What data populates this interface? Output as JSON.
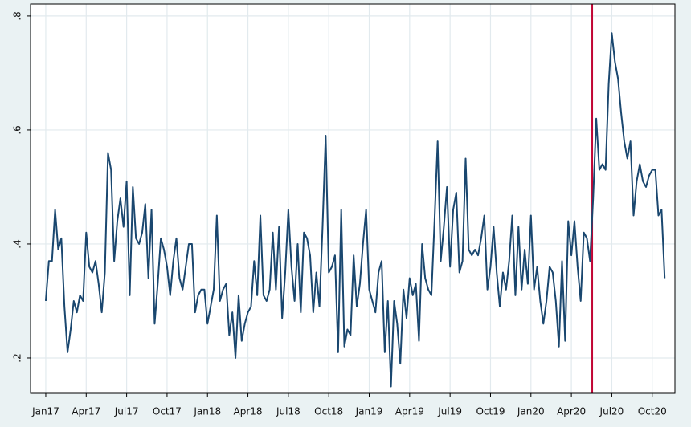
{
  "chart_data": {
    "type": "line",
    "x": [
      0,
      1,
      2,
      3,
      4,
      5,
      6,
      7,
      8,
      9,
      10,
      11,
      12,
      13,
      14,
      15,
      16,
      17,
      18,
      19,
      20,
      21,
      22,
      23,
      24,
      25,
      26,
      27,
      28,
      29,
      30,
      31,
      32,
      33,
      34,
      35,
      36,
      37,
      38,
      39,
      40,
      41,
      42,
      43,
      44,
      45,
      46,
      47,
      48,
      49,
      50,
      51,
      52,
      53,
      54,
      55,
      56,
      57,
      58,
      59,
      60,
      61,
      62,
      63,
      64,
      65,
      66,
      67,
      68,
      69,
      70,
      71,
      72,
      73,
      74,
      75,
      76,
      77,
      78,
      79,
      80,
      81,
      82,
      83,
      84,
      85,
      86,
      87,
      88,
      89,
      90,
      91,
      92,
      93,
      94,
      95,
      96,
      97,
      98,
      99,
      100,
      101,
      102,
      103,
      104,
      105,
      106,
      107,
      108,
      109,
      110,
      111,
      112,
      113,
      114,
      115,
      116,
      117,
      118,
      119,
      120,
      121,
      122,
      123,
      124,
      125,
      126,
      127,
      128,
      129,
      130,
      131,
      132,
      133,
      134,
      135,
      136,
      137,
      138,
      139,
      140,
      141,
      142,
      143,
      144,
      145,
      146,
      147,
      148,
      149,
      150,
      151,
      152,
      153,
      154,
      155,
      156,
      157,
      158,
      159,
      160,
      161,
      162,
      163,
      164,
      165,
      166,
      167,
      168,
      169,
      170,
      171,
      172,
      173,
      174,
      175,
      176,
      177,
      178,
      179,
      180,
      181,
      182,
      183,
      184,
      185,
      186,
      187,
      188,
      189,
      190,
      191,
      192,
      193,
      194,
      195,
      196,
      197,
      198,
      199
    ],
    "series": [
      {
        "color": "#1a476f",
        "values": [
          0.3,
          0.37,
          0.37,
          0.46,
          0.39,
          0.41,
          0.29,
          0.21,
          0.25,
          0.3,
          0.28,
          0.31,
          0.3,
          0.42,
          0.36,
          0.35,
          0.37,
          0.33,
          0.28,
          0.35,
          0.56,
          0.53,
          0.37,
          0.44,
          0.48,
          0.43,
          0.51,
          0.31,
          0.5,
          0.41,
          0.4,
          0.42,
          0.47,
          0.34,
          0.46,
          0.26,
          0.33,
          0.41,
          0.39,
          0.36,
          0.31,
          0.37,
          0.41,
          0.34,
          0.32,
          0.36,
          0.4,
          0.4,
          0.28,
          0.31,
          0.32,
          0.32,
          0.26,
          0.29,
          0.32,
          0.45,
          0.3,
          0.32,
          0.33,
          0.24,
          0.28,
          0.2,
          0.31,
          0.23,
          0.26,
          0.28,
          0.29,
          0.37,
          0.31,
          0.45,
          0.31,
          0.3,
          0.32,
          0.42,
          0.32,
          0.43,
          0.27,
          0.35,
          0.46,
          0.36,
          0.3,
          0.4,
          0.28,
          0.42,
          0.41,
          0.38,
          0.28,
          0.35,
          0.29,
          0.43,
          0.59,
          0.35,
          0.36,
          0.38,
          0.21,
          0.46,
          0.22,
          0.25,
          0.24,
          0.38,
          0.29,
          0.33,
          0.4,
          0.46,
          0.32,
          0.3,
          0.28,
          0.35,
          0.37,
          0.21,
          0.3,
          0.15,
          0.3,
          0.26,
          0.19,
          0.32,
          0.27,
          0.34,
          0.31,
          0.33,
          0.23,
          0.4,
          0.34,
          0.32,
          0.31,
          0.44,
          0.58,
          0.37,
          0.43,
          0.5,
          0.36,
          0.46,
          0.49,
          0.35,
          0.37,
          0.55,
          0.39,
          0.38,
          0.39,
          0.38,
          0.41,
          0.45,
          0.32,
          0.36,
          0.43,
          0.35,
          0.29,
          0.35,
          0.32,
          0.37,
          0.45,
          0.31,
          0.43,
          0.32,
          0.39,
          0.33,
          0.45,
          0.32,
          0.36,
          0.3,
          0.26,
          0.3,
          0.36,
          0.35,
          0.3,
          0.22,
          0.37,
          0.23,
          0.44,
          0.38,
          0.44,
          0.36,
          0.3,
          0.42,
          0.41,
          0.37,
          0.48,
          0.62,
          0.53,
          0.54,
          0.53,
          0.68,
          0.77,
          0.72,
          0.69,
          0.63,
          0.58,
          0.55,
          0.58,
          0.45,
          0.51,
          0.54,
          0.51,
          0.5,
          0.52,
          0.53,
          0.53,
          0.45,
          0.46,
          0.34
        ]
      }
    ],
    "xlim": [
      -4.9,
      202.3
    ],
    "ylim": [
      0.138,
      0.821
    ],
    "xticks": [
      {
        "value": 0,
        "label": "Jan17"
      },
      {
        "value": 13,
        "label": "Apr17"
      },
      {
        "value": 26,
        "label": "Jul17"
      },
      {
        "value": 39,
        "label": "Oct17"
      },
      {
        "value": 52,
        "label": "Jan18"
      },
      {
        "value": 65,
        "label": "Apr18"
      },
      {
        "value": 78,
        "label": "Jul18"
      },
      {
        "value": 91,
        "label": "Oct18"
      },
      {
        "value": 104,
        "label": "Jan19"
      },
      {
        "value": 117,
        "label": "Apr19"
      },
      {
        "value": 130,
        "label": "Jul19"
      },
      {
        "value": 143,
        "label": "Oct19"
      },
      {
        "value": 156,
        "label": "Jan20"
      },
      {
        "value": 169,
        "label": "Apr20"
      },
      {
        "value": 182,
        "label": "Jul20"
      },
      {
        "value": 195,
        "label": "Oct20"
      }
    ],
    "yticks": [
      {
        "value": 0.2,
        "label": ".2"
      },
      {
        "value": 0.4,
        "label": ".4"
      },
      {
        "value": 0.6,
        "label": ".6"
      },
      {
        "value": 0.8,
        "label": ".8"
      }
    ],
    "grid": true,
    "reference_lines": [
      {
        "x": 175.7,
        "color": "#c10534"
      }
    ]
  }
}
